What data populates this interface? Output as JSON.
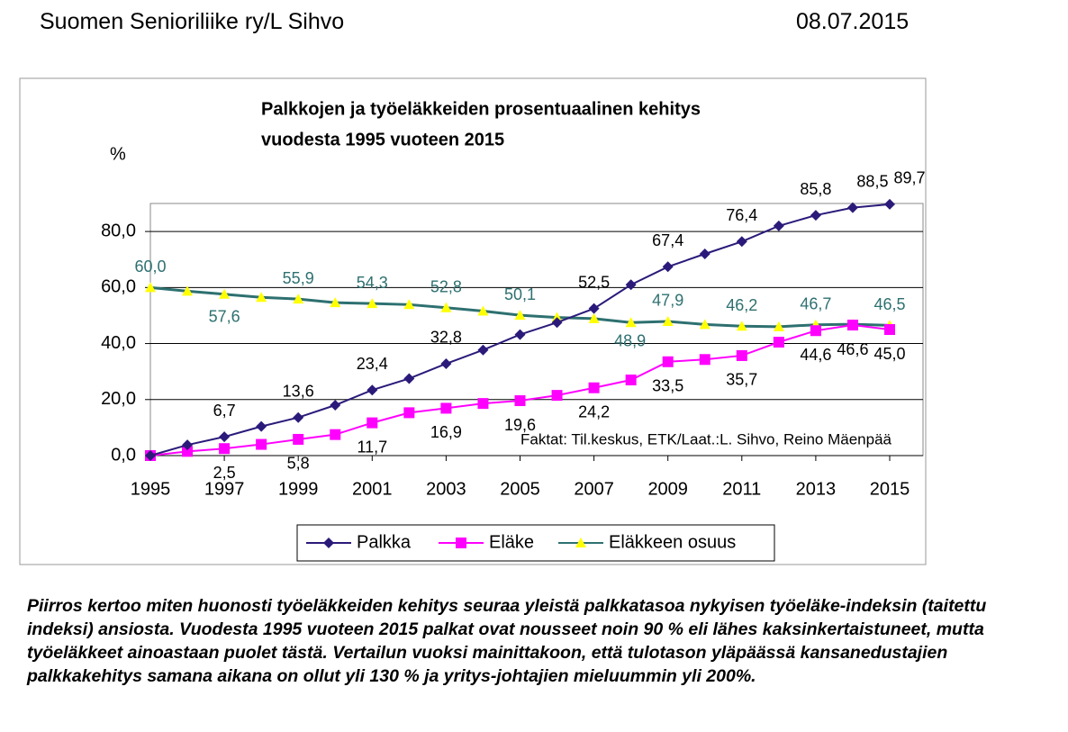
{
  "header": {
    "left": "Suomen Senioriliike ry/L Sihvo",
    "right": "08.07.2015"
  },
  "chart_data": {
    "type": "line",
    "title": [
      "Palkkojen ja työeläkkeiden prosentuaalinen kehitys",
      "vuodesta 1995 vuoteen 2015"
    ],
    "y_label": "%",
    "annotation": "Faktat: Til.keskus, ETK/Laat.:L. Sihvo, Reino Mäenpää",
    "x": [
      1995,
      1996,
      1997,
      1998,
      1999,
      2000,
      2001,
      2002,
      2003,
      2004,
      2005,
      2006,
      2007,
      2008,
      2009,
      2010,
      2011,
      2012,
      2013,
      2014,
      2015
    ],
    "xlim": [
      1995,
      2015
    ],
    "xticks": [
      1995,
      1997,
      1999,
      2001,
      2003,
      2005,
      2007,
      2009,
      2011,
      2013,
      2015
    ],
    "ylim": [
      0,
      90
    ],
    "yticks": [
      {
        "value": 0,
        "label": "0,0"
      },
      {
        "value": 20,
        "label": "20,0"
      },
      {
        "value": 40,
        "label": "40,0"
      },
      {
        "value": 60,
        "label": "60,0"
      },
      {
        "value": 80,
        "label": "80,0"
      }
    ],
    "grid": true,
    "legend": "bottom",
    "series": [
      {
        "name": "Palkka",
        "color": "#2b1a7a",
        "marker": "diamond",
        "values": [
          0,
          3.8,
          6.7,
          10.4,
          13.6,
          18,
          23.4,
          27.5,
          32.8,
          37.7,
          43.2,
          47.5,
          52.5,
          61,
          67.4,
          72,
          76.4,
          82,
          85.8,
          88.5,
          89.7
        ],
        "value_labels": [
          null,
          null,
          "6,7",
          null,
          "13,6",
          null,
          "23,4",
          null,
          "32,8",
          null,
          null,
          null,
          "52,5",
          null,
          "67,4",
          null,
          "76,4",
          null,
          "85,8",
          "88,5",
          "89,7"
        ]
      },
      {
        "name": "Eläke",
        "color": "#ff00ff",
        "marker": "square",
        "values": [
          0,
          1.5,
          2.5,
          4,
          5.8,
          7.5,
          11.7,
          15.3,
          16.9,
          18.6,
          19.6,
          21.5,
          24.2,
          27,
          33.5,
          34.3,
          35.7,
          40.5,
          44.6,
          46.6,
          45.0
        ],
        "value_labels": [
          null,
          null,
          "2,5",
          null,
          "5,8",
          null,
          "11,7",
          null,
          "16,9",
          null,
          "19,6",
          null,
          "24,2",
          null,
          "33,5",
          null,
          "35,7",
          null,
          "44,6",
          "46,6",
          "45,0"
        ]
      },
      {
        "name": "Eläkkeen osuus",
        "color": "#2e7070",
        "marker": "triangle",
        "marker_color": "#ffff00",
        "values": [
          60.0,
          58.7,
          57.6,
          56.5,
          55.9,
          54.6,
          54.3,
          53.9,
          52.8,
          51.6,
          50.1,
          49.3,
          48.9,
          47.5,
          47.9,
          46.8,
          46.2,
          46.0,
          46.7,
          46.9,
          46.5
        ],
        "value_labels": [
          "60,0",
          null,
          "57,6",
          null,
          "55,9",
          null,
          "54,3",
          null,
          "52,8",
          null,
          "50,1",
          null,
          "48,9",
          null,
          "47,9",
          null,
          "46,2",
          null,
          "46,7",
          null,
          "46,5"
        ]
      }
    ]
  },
  "caption": "Piirros kertoo miten huonosti työeläkkeiden kehitys seuraa yleistä palkkatasoa nykyisen työeläke-indeksin (taitettu indeksi) ansiosta. Vuodesta 1995 vuoteen 2015 palkat ovat nousseet noin 90 % eli lähes kaksinkertaistuneet, mutta työeläkkeet ainoastaan puolet tästä. Vertailun vuoksi mainittakoon, että tulotason yläpäässä kansanedustajien palkkakehitys samana aikana on ollut yli 130 % ja yritys-johtajien mieluummin yli 200%."
}
